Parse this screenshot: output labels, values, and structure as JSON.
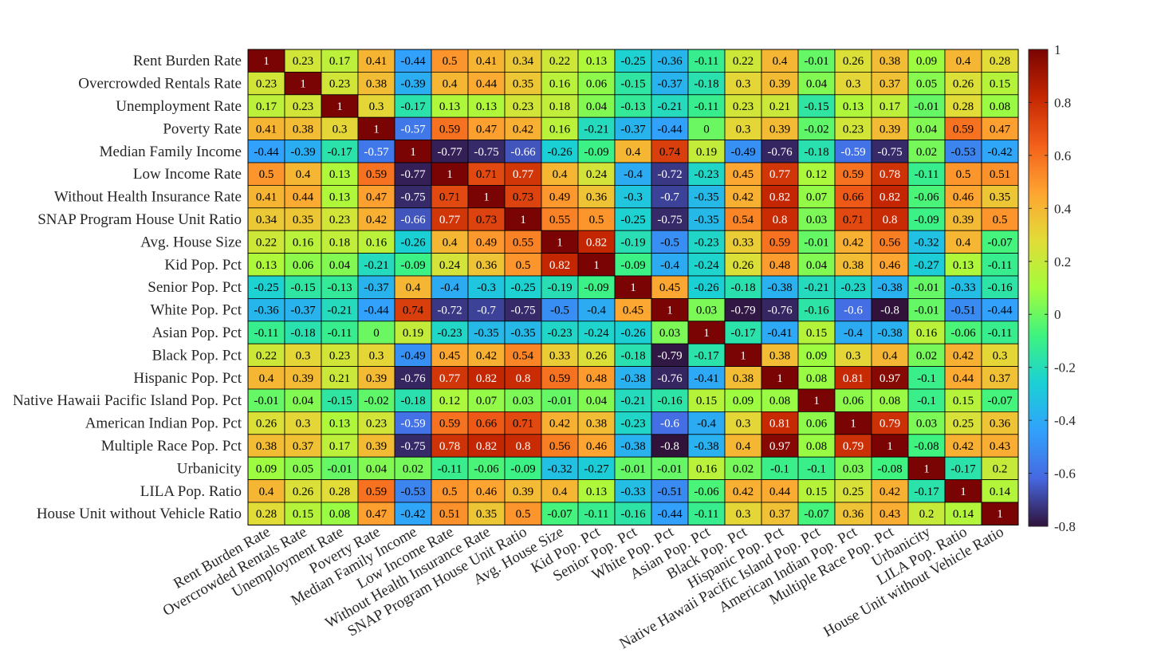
{
  "chart_data": {
    "type": "heatmap",
    "title": "",
    "xlabel": "",
    "ylabel": "",
    "labels": [
      "Rent Burden Rate",
      "Overcrowded Rentals Rate",
      "Unemployment Rate",
      "Poverty Rate",
      "Median Family Income",
      "Low Income Rate",
      "Without Health Insurance Rate",
      "SNAP Program House Unit Ratio",
      "Avg. House Size",
      "Kid Pop. Pct",
      "Senior Pop. Pct",
      "White Pop. Pct",
      "Asian Pop. Pct",
      "Black Pop. Pct",
      "Hispanic Pop. Pct",
      "Native Hawaii Pacific Island Pop. Pct",
      "American Indian Pop. Pct",
      "Multiple Race Pop. Pct",
      "Urbanicity",
      "LILA Pop. Ratio",
      "House Unit without Vehicle Ratio"
    ],
    "values": [
      [
        1,
        0.23,
        0.17,
        0.41,
        -0.44,
        0.5,
        0.41,
        0.34,
        0.22,
        0.13,
        -0.25,
        -0.36,
        -0.11,
        0.22,
        0.4,
        -0.01,
        0.26,
        0.38,
        0.09,
        0.4,
        0.28
      ],
      [
        0.23,
        1,
        0.23,
        0.38,
        -0.39,
        0.4,
        0.44,
        0.35,
        0.16,
        0.06,
        -0.15,
        -0.37,
        -0.18,
        0.3,
        0.39,
        0.04,
        0.3,
        0.37,
        0.05,
        0.26,
        0.15
      ],
      [
        0.17,
        0.23,
        1,
        0.3,
        -0.17,
        0.13,
        0.13,
        0.23,
        0.18,
        0.04,
        -0.13,
        -0.21,
        -0.11,
        0.23,
        0.21,
        -0.15,
        0.13,
        0.17,
        -0.01,
        0.28,
        0.08
      ],
      [
        0.41,
        0.38,
        0.3,
        1,
        -0.57,
        0.59,
        0.47,
        0.42,
        0.16,
        -0.21,
        -0.37,
        -0.44,
        0,
        0.3,
        0.39,
        -0.02,
        0.23,
        0.39,
        0.04,
        0.59,
        0.47
      ],
      [
        -0.44,
        -0.39,
        -0.17,
        -0.57,
        1,
        -0.77,
        -0.75,
        -0.66,
        -0.26,
        -0.09,
        0.4,
        0.74,
        0.19,
        -0.49,
        -0.76,
        -0.18,
        -0.59,
        -0.75,
        0.02,
        -0.53,
        -0.42
      ],
      [
        0.5,
        0.4,
        0.13,
        0.59,
        -0.77,
        1,
        0.71,
        0.77,
        0.4,
        0.24,
        -0.4,
        -0.72,
        -0.23,
        0.45,
        0.77,
        0.12,
        0.59,
        0.78,
        -0.11,
        0.5,
        0.51
      ],
      [
        0.41,
        0.44,
        0.13,
        0.47,
        -0.75,
        0.71,
        1,
        0.73,
        0.49,
        0.36,
        -0.3,
        -0.7,
        -0.35,
        0.42,
        0.82,
        0.07,
        0.66,
        0.82,
        -0.06,
        0.46,
        0.35
      ],
      [
        0.34,
        0.35,
        0.23,
        0.42,
        -0.66,
        0.77,
        0.73,
        1,
        0.55,
        0.5,
        -0.25,
        -0.75,
        -0.35,
        0.54,
        0.8,
        0.03,
        0.71,
        0.8,
        -0.09,
        0.39,
        0.5
      ],
      [
        0.22,
        0.16,
        0.18,
        0.16,
        -0.26,
        0.4,
        0.49,
        0.55,
        1,
        0.82,
        -0.19,
        -0.5,
        -0.23,
        0.33,
        0.59,
        -0.01,
        0.42,
        0.56,
        -0.32,
        0.4,
        -0.07
      ],
      [
        0.13,
        0.06,
        0.04,
        -0.21,
        -0.09,
        0.24,
        0.36,
        0.5,
        0.82,
        1,
        -0.09,
        -0.4,
        -0.24,
        0.26,
        0.48,
        0.04,
        0.38,
        0.46,
        -0.27,
        0.13,
        -0.11
      ],
      [
        -0.25,
        -0.15,
        -0.13,
        -0.37,
        0.4,
        -0.4,
        -0.3,
        -0.25,
        -0.19,
        -0.09,
        1,
        0.45,
        -0.26,
        -0.18,
        -0.38,
        -0.21,
        -0.23,
        -0.38,
        -0.01,
        -0.33,
        -0.16
      ],
      [
        -0.36,
        -0.37,
        -0.21,
        -0.44,
        0.74,
        -0.72,
        -0.7,
        -0.75,
        -0.5,
        -0.4,
        0.45,
        1,
        0.03,
        -0.79,
        -0.76,
        -0.16,
        -0.6,
        -0.8,
        -0.01,
        -0.51,
        -0.44
      ],
      [
        -0.11,
        -0.18,
        -0.11,
        0,
        0.19,
        -0.23,
        -0.35,
        -0.35,
        -0.23,
        -0.24,
        -0.26,
        0.03,
        1,
        -0.17,
        -0.41,
        0.15,
        -0.4,
        -0.38,
        0.16,
        -0.06,
        -0.11
      ],
      [
        0.22,
        0.3,
        0.23,
        0.3,
        -0.49,
        0.45,
        0.42,
        0.54,
        0.33,
        0.26,
        -0.18,
        -0.79,
        -0.17,
        1,
        0.38,
        0.09,
        0.3,
        0.4,
        0.02,
        0.42,
        0.3
      ],
      [
        0.4,
        0.39,
        0.21,
        0.39,
        -0.76,
        0.77,
        0.82,
        0.8,
        0.59,
        0.48,
        -0.38,
        -0.76,
        -0.41,
        0.38,
        1,
        0.08,
        0.81,
        0.97,
        -0.1,
        0.44,
        0.37
      ],
      [
        -0.01,
        0.04,
        -0.15,
        -0.02,
        -0.18,
        0.12,
        0.07,
        0.03,
        -0.01,
        0.04,
        -0.21,
        -0.16,
        0.15,
        0.09,
        0.08,
        1,
        0.06,
        0.08,
        -0.1,
        0.15,
        -0.07
      ],
      [
        0.26,
        0.3,
        0.13,
        0.23,
        -0.59,
        0.59,
        0.66,
        0.71,
        0.42,
        0.38,
        -0.23,
        -0.6,
        -0.4,
        0.3,
        0.81,
        0.06,
        1,
        0.79,
        0.03,
        0.25,
        0.36
      ],
      [
        0.38,
        0.37,
        0.17,
        0.39,
        -0.75,
        0.78,
        0.82,
        0.8,
        0.56,
        0.46,
        -0.38,
        -0.8,
        -0.38,
        0.4,
        0.97,
        0.08,
        0.79,
        1,
        -0.08,
        0.42,
        0.43
      ],
      [
        0.09,
        0.05,
        -0.01,
        0.04,
        0.02,
        -0.11,
        -0.06,
        -0.09,
        -0.32,
        -0.27,
        -0.01,
        -0.01,
        0.16,
        0.02,
        -0.1,
        -0.1,
        0.03,
        -0.08,
        1,
        -0.17,
        0.2
      ],
      [
        0.4,
        0.26,
        0.28,
        0.59,
        -0.53,
        0.5,
        0.46,
        0.39,
        0.4,
        0.13,
        -0.33,
        -0.51,
        -0.06,
        0.42,
        0.44,
        0.15,
        0.25,
        0.42,
        -0.17,
        1,
        0.14
      ],
      [
        0.28,
        0.15,
        0.08,
        0.47,
        -0.42,
        0.51,
        0.35,
        0.5,
        -0.07,
        -0.11,
        -0.16,
        -0.44,
        -0.11,
        0.3,
        0.37,
        -0.07,
        0.36,
        0.43,
        0.2,
        0.14,
        1
      ]
    ],
    "colorbar": {
      "colormap": "turbo",
      "range": [
        -0.8,
        1
      ],
      "ticks": [
        1,
        0.8,
        0.6,
        0.4,
        0.2,
        0,
        -0.2,
        -0.4,
        -0.6,
        -0.8
      ],
      "tick_labels": [
        "1",
        "0.8",
        "0.6",
        "0.4",
        "0.2",
        "0",
        "-0.2",
        "-0.4",
        "-0.6",
        "-0.8"
      ]
    },
    "grid": true,
    "legend": "right"
  }
}
